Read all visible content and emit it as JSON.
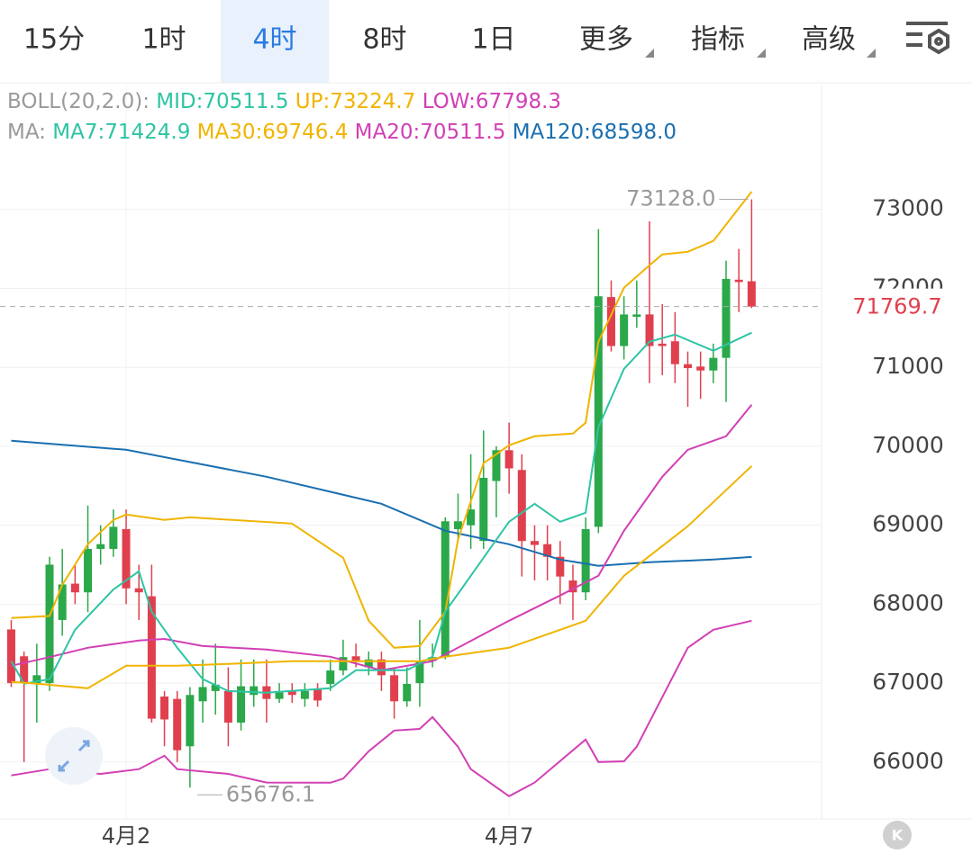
{
  "tabs": [
    "15分",
    "1时",
    "4时",
    "8时",
    "1日",
    "更多",
    "指标",
    "高级"
  ],
  "selected_tab": 2,
  "legend": {
    "boll": [
      {
        "text": "BOLL(20,2.0):",
        "color": "#9a9a9a"
      },
      {
        "text": "MID:70511.5",
        "color": "#2ec4a4"
      },
      {
        "text": "UP:73224.7",
        "color": "#f0b400"
      },
      {
        "text": "LOW:67798.3",
        "color": "#d23fb4"
      }
    ],
    "ma": [
      {
        "text": "MA:",
        "color": "#9a9a9a"
      },
      {
        "text": "MA7:71424.9",
        "color": "#2ec4a4"
      },
      {
        "text": "MA30:69746.4",
        "color": "#f0b400"
      },
      {
        "text": "MA20:70511.5",
        "color": "#d23fb4"
      },
      {
        "text": "MA120:68598.0",
        "color": "#1a6fb0"
      }
    ]
  },
  "k_button": "K",
  "chart_data": {
    "type": "candlestick",
    "categories": [
      null,
      null,
      null,
      null,
      null,
      null,
      null,
      null,
      null,
      "4月2",
      null,
      null,
      null,
      null,
      null,
      null,
      null,
      null,
      null,
      null,
      null,
      null,
      null,
      null,
      null,
      null,
      null,
      null,
      null,
      null,
      null,
      null,
      null,
      null,
      null,
      null,
      null,
      null,
      null,
      "4月7",
      null,
      null,
      null,
      null,
      null,
      null,
      null,
      null,
      null,
      null,
      null,
      null,
      null,
      null,
      null,
      null,
      null,
      null,
      null
    ],
    "open": [
      67680,
      67340,
      66990,
      67000,
      67800,
      68260,
      68150,
      68700,
      68700,
      68950,
      68200,
      68100,
      66830,
      66800,
      66200,
      66770,
      66900,
      66900,
      66500,
      66850,
      66960,
      66800,
      66900,
      66800,
      66920,
      66990,
      67160,
      67340,
      67200,
      67300,
      67100,
      66770,
      67000,
      67280,
      67330,
      68950,
      69000,
      68800,
      69560,
      69950,
      69700,
      68800,
      68760,
      68600,
      68300,
      68150,
      68980,
      71890,
      71270,
      71640,
      71670,
      71300,
      71330,
      71040,
      71010,
      70960,
      71120,
      72110,
      72090
    ],
    "close": [
      67000,
      67000,
      67100,
      68500,
      68250,
      68150,
      68700,
      68760,
      68980,
      68200,
      68150,
      66550,
      66540,
      66150,
      66850,
      66950,
      66980,
      66500,
      66960,
      66960,
      66800,
      66880,
      66850,
      66900,
      66780,
      67160,
      67330,
      67270,
      67300,
      67100,
      66770,
      66990,
      67280,
      67330,
      69050,
      69050,
      69200,
      69600,
      69950,
      69720,
      68800,
      68750,
      68600,
      68350,
      68150,
      68950,
      71900,
      71270,
      71670,
      71670,
      71270,
      71270,
      71040,
      70990,
      70960,
      71120,
      72120,
      72080,
      71769.7
    ],
    "high": [
      67800,
      67400,
      67500,
      68600,
      68700,
      68500,
      69250,
      69000,
      69200,
      69200,
      68500,
      68500,
      66900,
      66900,
      66950,
      67300,
      67500,
      67200,
      67300,
      67300,
      67300,
      67000,
      67000,
      67000,
      67000,
      67300,
      67550,
      67500,
      67400,
      67400,
      67200,
      67200,
      67800,
      67500,
      69100,
      69400,
      69900,
      70200,
      70000,
      70300,
      69900,
      69000,
      69000,
      68800,
      68500,
      69100,
      72750,
      72100,
      71900,
      72100,
      72850,
      71800,
      71700,
      71200,
      71200,
      71300,
      72350,
      72500,
      73128
    ],
    "low": [
      66950,
      66000,
      66500,
      66900,
      67600,
      68000,
      67900,
      68500,
      68600,
      68000,
      67800,
      66500,
      66200,
      66000,
      65676.1,
      66500,
      66600,
      66200,
      66400,
      66700,
      66500,
      66750,
      66750,
      66700,
      66700,
      66900,
      67100,
      67200,
      67100,
      66900,
      66550,
      66700,
      66700,
      67200,
      67300,
      68800,
      68700,
      68700,
      69100,
      69400,
      68350,
      68300,
      68300,
      68000,
      67800,
      68050,
      68900,
      71200,
      71100,
      71500,
      70800,
      70900,
      70800,
      70500,
      70600,
      70800,
      70560,
      71700,
      71750
    ],
    "up_color": "#2aa84a",
    "down_color": "#e0404e",
    "overlays": [
      {
        "color": "#1a6fb0",
        "x": [
          0,
          9,
          20,
          29,
          34,
          39,
          43,
          46,
          50,
          55,
          58
        ],
        "values": [
          70070,
          69956,
          69614,
          69272,
          68930,
          68759,
          68565,
          68486,
          68531,
          68565,
          68598
        ]
      },
      {
        "color": "#f0b400",
        "x": [
          0,
          3,
          4,
          6,
          8,
          9,
          12,
          14,
          22,
          26,
          28,
          30,
          32,
          34,
          35,
          37,
          39,
          41,
          44,
          45,
          46,
          48,
          50,
          51,
          53,
          55,
          58
        ],
        "values": [
          67824,
          67850,
          68246,
          68759,
          69067,
          69135,
          69067,
          69100,
          69021,
          68588,
          67790,
          67448,
          67470,
          67904,
          68816,
          69785,
          70013,
          70127,
          70161,
          70298,
          71324,
          72008,
          72293,
          72430,
          72464,
          72601,
          73225
        ]
      },
      {
        "color": "#d23fb4",
        "x": [
          0,
          3,
          6,
          10,
          12,
          15,
          20,
          25,
          29,
          33,
          35,
          39,
          43,
          46,
          48,
          51,
          53,
          56,
          58
        ],
        "values": [
          67220,
          67330,
          67448,
          67540,
          67560,
          67470,
          67425,
          67334,
          67163,
          67277,
          67448,
          67790,
          68110,
          68360,
          68930,
          69614,
          69956,
          70127,
          70526
        ]
      },
      {
        "color": "#d23fb4",
        "x": [
          0,
          3,
          7,
          10,
          12,
          13,
          17,
          20,
          25,
          26,
          28,
          30,
          32,
          33,
          35,
          36,
          39,
          41,
          45,
          46,
          48,
          49,
          53,
          55,
          58
        ],
        "values": [
          65830,
          65910,
          65850,
          65910,
          66080,
          65910,
          65850,
          65740,
          65738,
          65790,
          66137,
          66399,
          66420,
          66570,
          66194,
          65910,
          65567,
          65740,
          66285,
          66000,
          66010,
          66194,
          67448,
          67676,
          67790
        ]
      },
      {
        "color": "#2ec4a4",
        "x": [
          0,
          1,
          3,
          5,
          8,
          10,
          11,
          13,
          15,
          17,
          20,
          25,
          27,
          31,
          33,
          34,
          37,
          39,
          41,
          43,
          45,
          46,
          48,
          50,
          52,
          55,
          58
        ],
        "values": [
          67277,
          66992,
          67050,
          67676,
          68187,
          68417,
          67904,
          67448,
          67050,
          66900,
          66878,
          66935,
          67163,
          67163,
          67334,
          67904,
          68588,
          69044,
          69272,
          69044,
          69158,
          70241,
          70982,
          71324,
          71415,
          71210,
          71439
        ]
      },
      {
        "color": "#f0b400",
        "x": [
          0,
          2,
          6,
          9,
          13,
          17,
          22,
          26,
          32,
          34,
          39,
          41,
          45,
          48,
          53,
          58
        ],
        "values": [
          67015,
          66992,
          66935,
          67220,
          67220,
          67243,
          67277,
          67277,
          67277,
          67334,
          67448,
          67562,
          67790,
          68360,
          68987,
          69751
        ]
      }
    ],
    "last_price": 71769.7,
    "high_label": {
      "value": 73128,
      "label": "73128.0"
    },
    "low_label": {
      "value": 65676.1,
      "label": "65676.1"
    },
    "ylim": [
      65280,
      74570
    ],
    "yticks": [
      66000,
      67000,
      68000,
      69000,
      70000,
      71000,
      72000,
      73000
    ],
    "grid": true
  }
}
